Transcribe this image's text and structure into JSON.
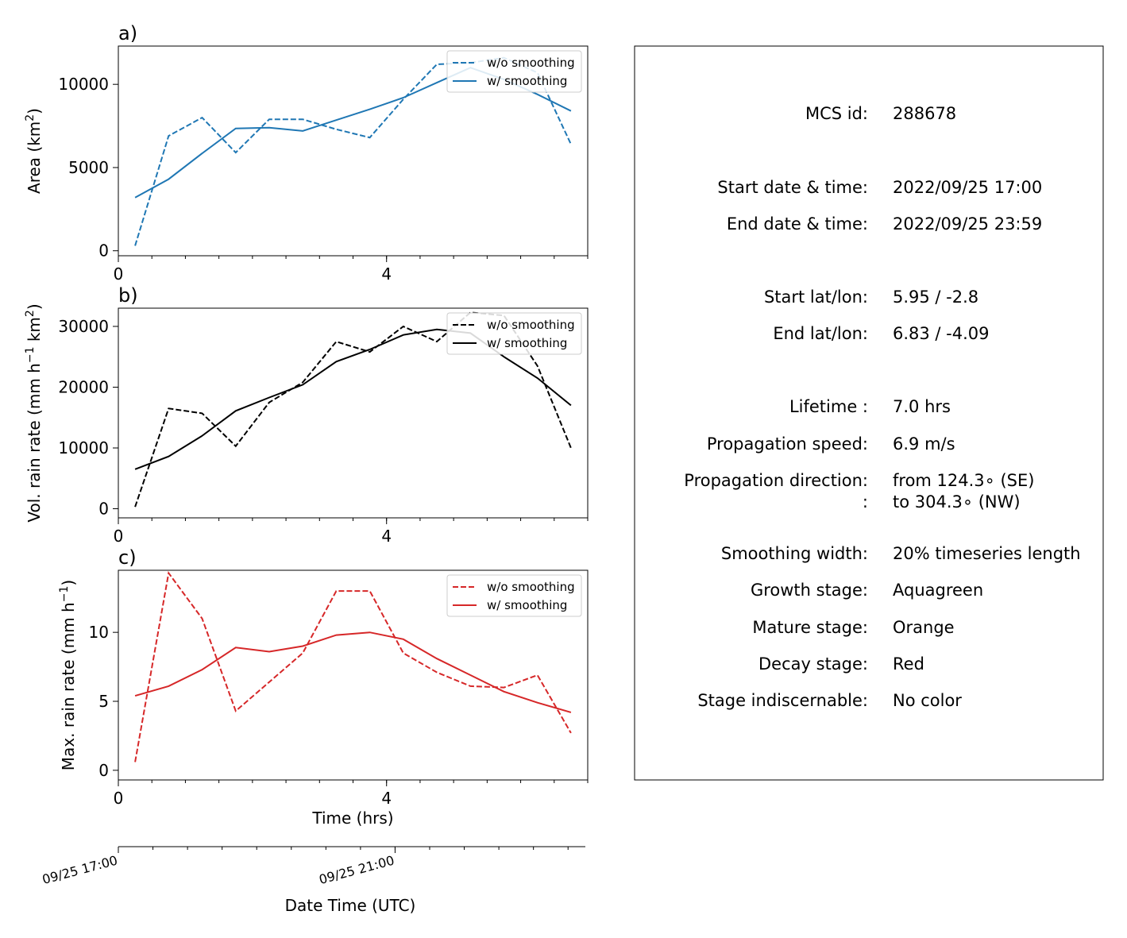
{
  "chart_data": [
    {
      "type": "line",
      "panel_label": "a)",
      "ylabel_text": "Area  (km",
      "ylabel_sup": "2",
      "ylabel_end": ")",
      "xlim": [
        0,
        7
      ],
      "ylim": [
        -300,
        12300
      ],
      "xticks": [
        0,
        4
      ],
      "xtick_labels": [
        "0",
        "4"
      ],
      "yticks": [
        0,
        5000,
        10000
      ],
      "ytick_labels": [
        "0",
        "5000",
        "10000"
      ],
      "color": "#1f77b4",
      "x": [
        0.25,
        0.75,
        1.25,
        1.75,
        2.25,
        2.75,
        3.25,
        3.75,
        4.25,
        4.75,
        5.25,
        5.75,
        6.25,
        6.75
      ],
      "series": [
        {
          "name": "w/o smoothing",
          "style": "dashed",
          "values": [
            300,
            6900,
            8000,
            5900,
            7900,
            7900,
            7300,
            6800,
            9100,
            11200,
            11300,
            11600,
            10700,
            6400
          ]
        },
        {
          "name": "w/ smoothing",
          "style": "solid",
          "values": [
            3200,
            4300,
            5850,
            7350,
            7400,
            7200,
            7850,
            8500,
            9200,
            10100,
            11000,
            10300,
            9400,
            8400
          ]
        }
      ],
      "legend": "upper right"
    },
    {
      "type": "line",
      "panel_label": "b)",
      "ylabel_text": "Vol. rain rate (mm h",
      "ylabel_sup": "−1",
      "ylabel_mid": " km",
      "ylabel_sup2": "2",
      "ylabel_end": ")",
      "xlim": [
        0,
        7
      ],
      "ylim": [
        -1500,
        33000
      ],
      "xticks": [
        0,
        4
      ],
      "xtick_labels": [
        "0",
        "4"
      ],
      "yticks": [
        0,
        10000,
        20000,
        30000
      ],
      "ytick_labels": [
        "0",
        "10000",
        "20000",
        "30000"
      ],
      "color": "#000000",
      "x": [
        0.25,
        0.75,
        1.25,
        1.75,
        2.25,
        2.75,
        3.25,
        3.75,
        4.25,
        4.75,
        5.25,
        5.75,
        6.25,
        6.75
      ],
      "series": [
        {
          "name": "w/o smoothing",
          "style": "dashed",
          "values": [
            300,
            16500,
            15700,
            10300,
            17500,
            20800,
            27500,
            25800,
            30000,
            27500,
            32300,
            31800,
            23500,
            10000
          ]
        },
        {
          "name": "w/ smoothing",
          "style": "solid",
          "values": [
            6500,
            8600,
            12000,
            16100,
            18300,
            20400,
            24200,
            26200,
            28600,
            29500,
            28900,
            25000,
            21500,
            17000
          ]
        }
      ],
      "legend": "upper right"
    },
    {
      "type": "line",
      "panel_label": "c)",
      "ylabel_text": "Max. rain rate  (mm h",
      "ylabel_sup": "−1",
      "ylabel_end": ")",
      "xlim": [
        0,
        7
      ],
      "ylim": [
        -0.7,
        14.5
      ],
      "xticks": [
        0,
        4
      ],
      "xtick_labels": [
        "0",
        "4"
      ],
      "yticks": [
        0,
        5,
        10
      ],
      "ytick_labels": [
        "0",
        "5",
        "10"
      ],
      "xlabel": "Time (hrs)",
      "color": "#d62728",
      "x": [
        0.25,
        0.75,
        1.25,
        1.75,
        2.25,
        2.75,
        3.25,
        3.75,
        4.25,
        4.75,
        5.25,
        5.75,
        6.25,
        6.75
      ],
      "series": [
        {
          "name": "w/o smoothing",
          "style": "dashed",
          "values": [
            0.6,
            14.3,
            11.0,
            4.3,
            6.4,
            8.5,
            13.0,
            13.0,
            8.5,
            7.1,
            6.1,
            6.0,
            6.9,
            2.7
          ]
        },
        {
          "name": "w/ smoothing",
          "style": "solid",
          "values": [
            5.4,
            6.1,
            7.3,
            8.9,
            8.6,
            9.0,
            9.8,
            10.0,
            9.5,
            8.1,
            6.9,
            5.7,
            4.9,
            4.2
          ]
        }
      ],
      "legend": "upper right"
    }
  ],
  "date_axis": {
    "xlabel": "Date Time (UTC)",
    "ticks": [
      0,
      4
    ],
    "tick_labels": [
      "09/25 17:00",
      "09/25 21:00"
    ],
    "xlim": [
      0,
      6.75
    ]
  },
  "info_panel": {
    "rows": [
      {
        "label": "MCS id:",
        "value": "288678"
      },
      {
        "label": "Start date & time:",
        "value": "2022/09/25 17:00"
      },
      {
        "label": "End date & time:",
        "value": "2022/09/25 23:59"
      },
      {
        "label": "Start lat/lon:",
        "value": "5.95 / -2.8"
      },
      {
        "label": "End lat/lon:",
        "value": "6.83 / -4.09"
      },
      {
        "label": "Lifetime :",
        "value": "7.0 hrs"
      },
      {
        "label": "Propagation speed:",
        "value": "6.9 m/s"
      },
      {
        "label": "Propagation direction:",
        "value": "from 124.3∘ (SE)"
      },
      {
        "label": ":",
        "value": "to   304.3∘ (NW)"
      },
      {
        "label": "Smoothing width:",
        "value": "20% timeseries length"
      },
      {
        "label": "Growth stage:",
        "value": "Aquagreen"
      },
      {
        "label": "Mature stage:",
        "value": "Orange"
      },
      {
        "label": "Decay stage:",
        "value": "Red"
      },
      {
        "label": "Stage indiscernable:",
        "value": "No color"
      }
    ]
  }
}
